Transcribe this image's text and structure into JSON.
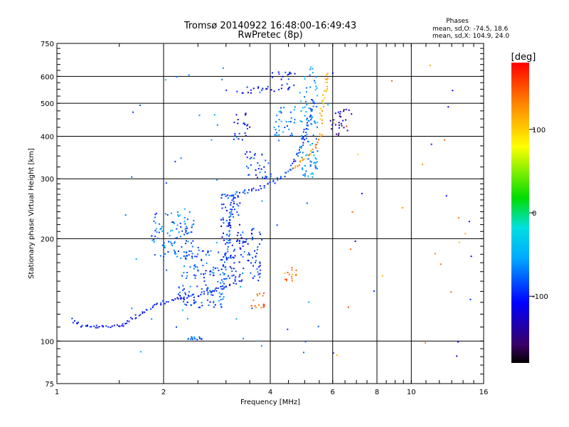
{
  "chart_data": {
    "type": "scatter",
    "title": "Tromsø 20140922 16:48:00-16:49:43",
    "subtitle": "RwPretec (8p)",
    "xlabel": "Frequency [MHz]",
    "ylabel": "Stationary phase Virtual Height [km]",
    "x_scale": "log",
    "y_scale": "log",
    "xlim": [
      1,
      16
    ],
    "ylim": [
      75,
      750
    ],
    "x_ticks": [
      1,
      2,
      4,
      6,
      8,
      10,
      16
    ],
    "x_tick_labels": [
      "1",
      "2",
      "4",
      "6",
      "8",
      "10",
      "16"
    ],
    "y_ticks": [
      75,
      100,
      200,
      300,
      400,
      500,
      600,
      750
    ],
    "y_tick_labels": [
      "75",
      "100",
      "200",
      "300",
      "400",
      "500",
      "600",
      "750"
    ],
    "grid": true,
    "stats": {
      "heading": "Phases",
      "line_o": "mean, sd,O: -74.5, 18.6",
      "line_x": "mean, sd,X: 104.9, 24.0"
    },
    "colorbar": {
      "label": "[deg]",
      "range": [
        -180,
        180
      ],
      "ticks": [
        100,
        0,
        -100
      ],
      "tick_labels": [
        "100",
        "0",
        "-100"
      ],
      "colormap": "rainbow"
    },
    "traces": [
      {
        "phase": -105,
        "points": [
          [
            1.1,
            116
          ],
          [
            1.16,
            111
          ],
          [
            1.25,
            110
          ],
          [
            1.38,
            110
          ],
          [
            1.5,
            111
          ],
          [
            1.56,
            113
          ],
          [
            1.62,
            116
          ],
          [
            1.72,
            120
          ],
          [
            1.85,
            125
          ],
          [
            2.0,
            130
          ],
          [
            2.2,
            133
          ],
          [
            2.45,
            136
          ],
          [
            2.7,
            140
          ],
          [
            2.9,
            143
          ],
          [
            3.1,
            147
          ],
          [
            3.35,
            152
          ]
        ]
      },
      {
        "phase": -90,
        "points": [
          [
            2.9,
            265
          ],
          [
            3.05,
            268
          ],
          [
            3.25,
            272
          ],
          [
            3.5,
            276
          ],
          [
            3.75,
            282
          ],
          [
            4.0,
            290
          ],
          [
            4.25,
            300
          ],
          [
            4.5,
            315
          ],
          [
            4.7,
            340
          ],
          [
            4.9,
            375
          ],
          [
            5.05,
            420
          ],
          [
            5.2,
            470
          ],
          [
            5.3,
            520
          ]
        ]
      },
      {
        "phase": -80,
        "points": [
          [
            2.9,
            125
          ],
          [
            2.95,
            150
          ],
          [
            3.0,
            180
          ],
          [
            3.05,
            210
          ],
          [
            3.1,
            240
          ],
          [
            3.15,
            270
          ]
        ]
      },
      {
        "phase": 130,
        "points": [
          [
            4.6,
            320
          ],
          [
            4.9,
            335
          ],
          [
            5.2,
            355
          ],
          [
            5.45,
            380
          ],
          [
            5.6,
            410
          ]
        ]
      },
      {
        "phase": 110,
        "points": [
          [
            5.55,
            440
          ],
          [
            5.6,
            480
          ],
          [
            5.68,
            520
          ],
          [
            5.75,
            570
          ],
          [
            5.8,
            620
          ]
        ]
      }
    ],
    "clusters": [
      {
        "x": [
          1.85,
          2.45
        ],
        "y": [
          175,
          240
        ],
        "phase": -75
      },
      {
        "x": [
          2.2,
          2.9
        ],
        "y": [
          125,
          185
        ],
        "phase": -85
      },
      {
        "x": [
          2.9,
          3.3
        ],
        "y": [
          150,
          270
        ],
        "phase": -100
      },
      {
        "x": [
          3.3,
          3.8
        ],
        "y": [
          150,
          215
        ],
        "phase": -90
      },
      {
        "x": [
          3.15,
          3.5
        ],
        "y": [
          390,
          470
        ],
        "phase": -110
      },
      {
        "x": [
          3.4,
          4.05
        ],
        "y": [
          300,
          360
        ],
        "phase": -95
      },
      {
        "x": [
          3.2,
          4.0
        ],
        "y": [
          535,
          560
        ],
        "phase": -110
      },
      {
        "x": [
          4.0,
          4.7
        ],
        "y": [
          540,
          620
        ],
        "phase": -105
      },
      {
        "x": [
          4.1,
          4.7
        ],
        "y": [
          400,
          500
        ],
        "phase": -70
      },
      {
        "x": [
          4.85,
          5.45
        ],
        "y": [
          300,
          640
        ],
        "phase": -60
      },
      {
        "x": [
          3.5,
          3.85
        ],
        "y": [
          125,
          140
        ],
        "phase": 150
      },
      {
        "x": [
          4.35,
          4.75
        ],
        "y": [
          150,
          165
        ],
        "phase": 130
      },
      {
        "x": [
          5.9,
          6.8
        ],
        "y": [
          400,
          480
        ],
        "phase": -130
      },
      {
        "x": [
          2.3,
          2.6
        ],
        "y": [
          101,
          103
        ],
        "phase": -80
      }
    ]
  }
}
